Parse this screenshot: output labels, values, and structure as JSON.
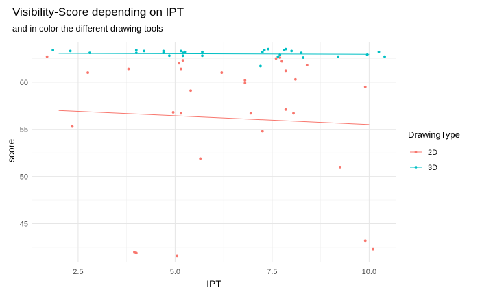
{
  "chart_data": {
    "type": "scatter",
    "title": "Visibility-Score depending on IPT",
    "subtitle": "and in color the different drawing tools",
    "xlabel": "IPT",
    "ylabel": "score",
    "xlim": [
      1.3,
      10.7
    ],
    "ylim": [
      40.9,
      64.2
    ],
    "x_ticks": [
      2.5,
      5.0,
      7.5,
      10.0
    ],
    "x_tick_labels": [
      "2.5",
      "5.0",
      "7.5",
      "10.0"
    ],
    "y_ticks": [
      45,
      50,
      55,
      60
    ],
    "y_tick_labels": [
      "45",
      "50",
      "55",
      "60"
    ],
    "grid": true,
    "legend": {
      "title": "DrawingType",
      "position": "right"
    },
    "series": [
      {
        "name": "2D",
        "color": "#F8766D",
        "points": [
          [
            1.7,
            62.7
          ],
          [
            2.75,
            61.0
          ],
          [
            2.35,
            55.3
          ],
          [
            3.8,
            61.4
          ],
          [
            3.95,
            42.0
          ],
          [
            4.0,
            41.9
          ],
          [
            5.05,
            41.6
          ],
          [
            5.1,
            62.0
          ],
          [
            5.15,
            61.4
          ],
          [
            5.2,
            62.3
          ],
          [
            4.95,
            56.8
          ],
          [
            5.15,
            56.7
          ],
          [
            5.4,
            59.1
          ],
          [
            5.65,
            51.9
          ],
          [
            6.2,
            61.0
          ],
          [
            6.8,
            59.9
          ],
          [
            6.8,
            60.2
          ],
          [
            6.95,
            56.7
          ],
          [
            7.25,
            54.8
          ],
          [
            7.6,
            62.5
          ],
          [
            7.7,
            62.6
          ],
          [
            7.75,
            62.2
          ],
          [
            7.85,
            61.2
          ],
          [
            7.85,
            57.1
          ],
          [
            8.05,
            56.7
          ],
          [
            8.1,
            60.3
          ],
          [
            8.4,
            61.8
          ],
          [
            9.25,
            51.0
          ],
          [
            9.9,
            59.5
          ],
          [
            9.9,
            43.2
          ],
          [
            10.1,
            42.3
          ]
        ],
        "fit": {
          "x": [
            2.0,
            10.0
          ],
          "y": [
            57.0,
            55.5
          ]
        }
      },
      {
        "name": "3D",
        "color": "#00BFC4",
        "points": [
          [
            1.85,
            63.4
          ],
          [
            2.3,
            63.3
          ],
          [
            2.8,
            63.1
          ],
          [
            4.0,
            63.1
          ],
          [
            4.0,
            63.4
          ],
          [
            4.2,
            63.3
          ],
          [
            4.7,
            63.1
          ],
          [
            4.7,
            63.3
          ],
          [
            4.85,
            62.8
          ],
          [
            5.15,
            63.3
          ],
          [
            5.2,
            63.1
          ],
          [
            5.25,
            63.2
          ],
          [
            5.2,
            62.8
          ],
          [
            5.7,
            63.2
          ],
          [
            5.7,
            62.8
          ],
          [
            7.2,
            61.7
          ],
          [
            7.25,
            63.2
          ],
          [
            7.3,
            63.4
          ],
          [
            7.4,
            63.5
          ],
          [
            7.65,
            62.7
          ],
          [
            7.7,
            62.9
          ],
          [
            7.8,
            63.4
          ],
          [
            7.85,
            63.5
          ],
          [
            8.0,
            63.3
          ],
          [
            8.25,
            63.1
          ],
          [
            8.3,
            62.6
          ],
          [
            9.2,
            62.7
          ],
          [
            9.95,
            62.9
          ],
          [
            10.25,
            63.2
          ],
          [
            10.4,
            62.7
          ]
        ],
        "fit": {
          "x": [
            2.0,
            10.0
          ],
          "y": [
            63.05,
            62.95
          ]
        }
      }
    ]
  }
}
